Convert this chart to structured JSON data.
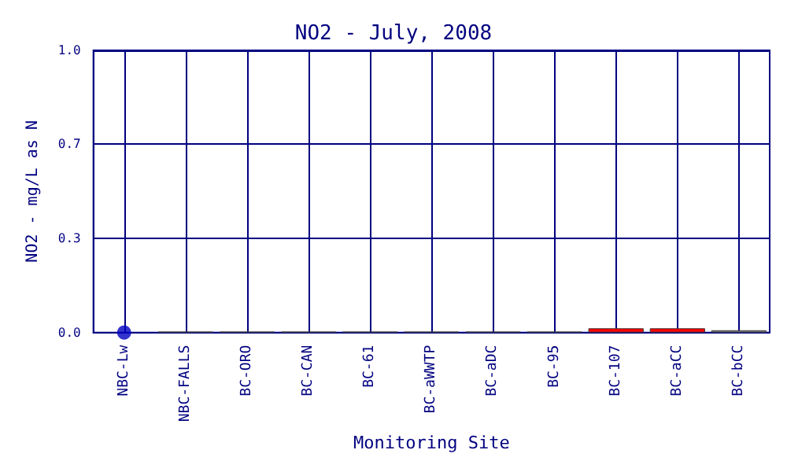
{
  "chart_data": {
    "type": "bar",
    "title": "NO2 - July, 2008",
    "xlabel": "Monitoring Site",
    "ylabel": "NO2 - mg/L as N",
    "categories": [
      "NBC-Lw",
      "NBC-FALLS",
      "BC-ORO",
      "BC-CAN",
      "BC-61",
      "BC-aWWTP",
      "BC-aDC",
      "BC-95",
      "BC-107",
      "BC-aCC",
      "BC-bCC"
    ],
    "series": [
      {
        "values": [
          null,
          0.003,
          0.003,
          0.003,
          0.003,
          0.003,
          0.003,
          0.003,
          0.015,
          0.015,
          0.008
        ],
        "colors": [
          "#808080",
          "#808080",
          "#808080",
          "#808080",
          "#808080",
          "#808080",
          "#808080",
          "#808080",
          "#ff0000",
          "#ff0000",
          "#808080"
        ]
      },
      {
        "type": "scatter",
        "values": [
          0,
          null,
          null,
          null,
          null,
          null,
          null,
          null,
          null,
          null,
          null
        ],
        "color": "#0000c0",
        "marker": "circle"
      }
    ],
    "ylim": [
      0,
      1
    ],
    "yticks": [
      {
        "value": 0,
        "label": "0.0"
      },
      {
        "value": 0.333,
        "label": "0.3"
      },
      {
        "value": 0.667,
        "label": "0.7"
      },
      {
        "value": 1,
        "label": "1.0"
      }
    ],
    "grid": true
  }
}
